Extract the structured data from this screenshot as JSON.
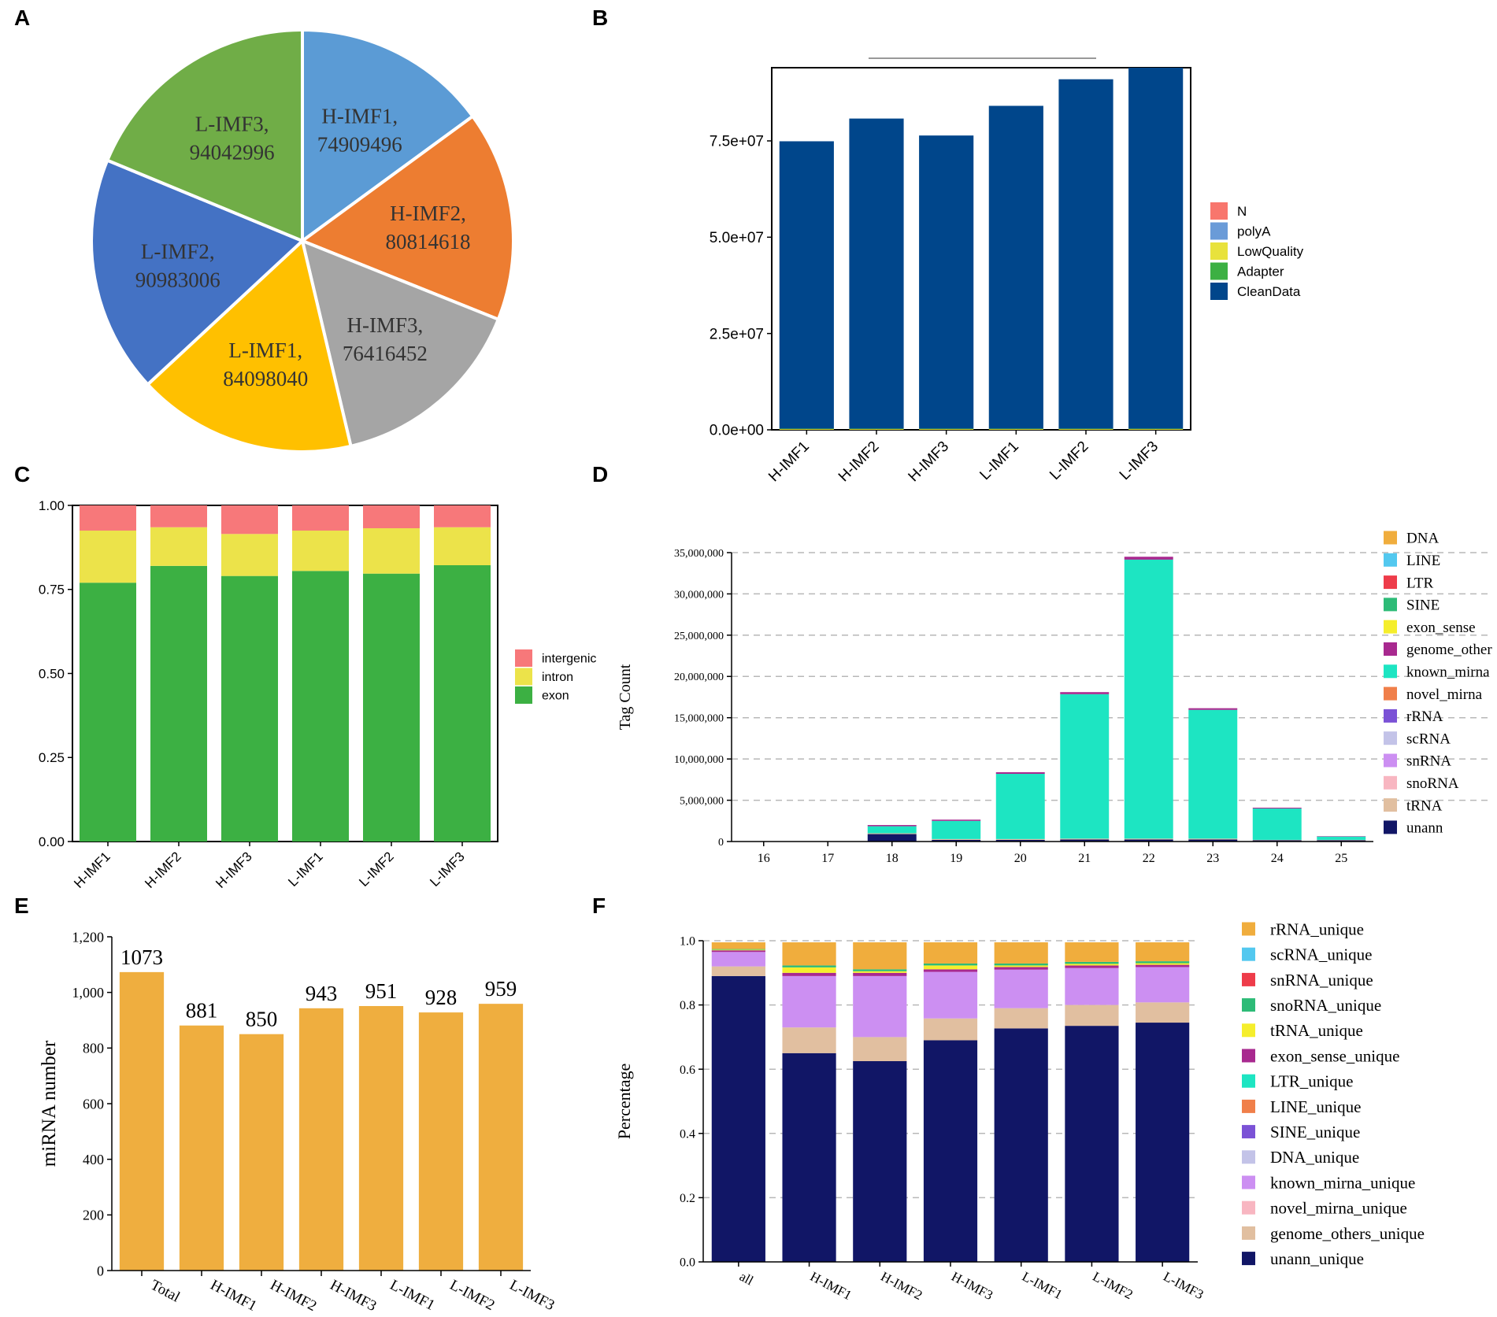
{
  "panel_letters": [
    "A",
    "B",
    "C",
    "D",
    "E",
    "F"
  ],
  "chart_data": [
    {
      "panel": "A",
      "type": "pie",
      "title": "",
      "slices": [
        {
          "name": "H-IMF1",
          "value": 74909496,
          "label_name": "H-IMF1,",
          "label_value": "74909496",
          "color": "#5b9bd5"
        },
        {
          "name": "H-IMF2",
          "value": 80814618,
          "label_name": "H-IMF2,",
          "label_value": "80814618",
          "color": "#ed7d31"
        },
        {
          "name": "H-IMF3",
          "value": 76416452,
          "label_name": "H-IMF3,",
          "label_value": "76416452",
          "color": "#a5a5a5"
        },
        {
          "name": "L-IMF1",
          "value": 84098040,
          "label_name": "L-IMF1,",
          "label_value": "84098040",
          "color": "#ffc000"
        },
        {
          "name": "L-IMF2",
          "value": 90983006,
          "label_name": "L-IMF2,",
          "label_value": "90983006",
          "color": "#4472c4"
        },
        {
          "name": "L-IMF3",
          "value": 94042996,
          "label_name": "L-IMF3,",
          "label_value": "94042996",
          "color": "#70ad47"
        }
      ]
    },
    {
      "panel": "B",
      "type": "bar",
      "stacked": true,
      "categories": [
        "H-IMF1",
        "H-IMF2",
        "H-IMF3",
        "L-IMF1",
        "L-IMF2",
        "L-IMF3"
      ],
      "series": [
        {
          "name": "N",
          "color": "#f8766d",
          "values": [
            0,
            0,
            0,
            0,
            0,
            0
          ]
        },
        {
          "name": "polyA",
          "color": "#6a9bd8",
          "values": [
            0,
            0,
            0,
            0,
            0,
            0
          ]
        },
        {
          "name": "LowQuality",
          "color": "#e8e23c",
          "values": [
            200000,
            200000,
            200000,
            200000,
            200000,
            200000
          ]
        },
        {
          "name": "Adapter",
          "color": "#3cb043",
          "values": [
            100000,
            100000,
            100000,
            100000,
            100000,
            100000
          ]
        },
        {
          "name": "CleanData",
          "color": "#00468b",
          "values": [
            74600000,
            80500000,
            76100000,
            83800000,
            90700000,
            93700000
          ]
        }
      ],
      "legend_order": [
        "N",
        "polyA",
        "LowQuality",
        "Adapter",
        "CleanData"
      ],
      "yticks": [
        "0.0e+00",
        "2.5e+07",
        "5.0e+07",
        "7.5e+07"
      ],
      "ytick_values": [
        0,
        25000000,
        50000000,
        75000000
      ],
      "ylim": [
        0,
        94000000
      ],
      "xlabel": "",
      "ylabel": ""
    },
    {
      "panel": "C",
      "type": "bar",
      "stacked": true,
      "categories": [
        "H-IMF1",
        "H-IMF2",
        "H-IMF3",
        "L-IMF1",
        "L-IMF2",
        "L-IMF3"
      ],
      "series": [
        {
          "name": "exon",
          "color": "#3cb043",
          "values": [
            0.77,
            0.82,
            0.79,
            0.805,
            0.797,
            0.822
          ]
        },
        {
          "name": "intron",
          "color": "#ece34a",
          "values": [
            0.155,
            0.115,
            0.125,
            0.12,
            0.135,
            0.113
          ]
        },
        {
          "name": "intergenic",
          "color": "#f7787a",
          "values": [
            0.075,
            0.065,
            0.085,
            0.075,
            0.068,
            0.065
          ]
        }
      ],
      "legend_order": [
        "intergenic",
        "intron",
        "exon"
      ],
      "yticks": [
        "0.00",
        "0.25",
        "0.50",
        "0.75",
        "1.00"
      ],
      "ytick_values": [
        0,
        0.25,
        0.5,
        0.75,
        1.0
      ],
      "ylim": [
        0,
        1
      ],
      "xlabel": "",
      "ylabel": ""
    },
    {
      "panel": "D",
      "type": "bar",
      "stacked": true,
      "categories": [
        "16",
        "17",
        "18",
        "19",
        "20",
        "21",
        "22",
        "23",
        "24",
        "25"
      ],
      "ylabel": "Tag Count",
      "yticks": [
        "0",
        "5,000,000",
        "10,000,000",
        "15,000,000",
        "20,000,000",
        "25,000,000",
        "30,000,000",
        "35,000,000"
      ],
      "ytick_values": [
        0,
        5000000,
        10000000,
        15000000,
        20000000,
        25000000,
        30000000,
        35000000
      ],
      "ylim": [
        0,
        35000000
      ],
      "legend_order": [
        "DNA",
        "LINE",
        "LTR",
        "SINE",
        "exon_sense",
        "genome_other",
        "known_mirna",
        "novel_mirna",
        "rRNA",
        "scRNA",
        "snRNA",
        "snoRNA",
        "tRNA",
        "unann"
      ],
      "legend_colors": [
        "#f0ad3d",
        "#53c8ef",
        "#ee3c4a",
        "#2dbb77",
        "#f5ee2c",
        "#a8298f",
        "#1de5c2",
        "#f07f4a",
        "#7b52d6",
        "#c3c3e8",
        "#cc8ff2",
        "#f8b6c1",
        "#e1bfa0",
        "#111666"
      ],
      "series": [
        {
          "name": "unann",
          "color": "#111666",
          "values": [
            0,
            0,
            900000,
            200000,
            200000,
            250000,
            250000,
            250000,
            150000,
            150000
          ]
        },
        {
          "name": "tRNA",
          "color": "#e1bfa0",
          "values": [
            0,
            0,
            100000,
            100000,
            100000,
            100000,
            100000,
            100000,
            50000,
            50000
          ]
        },
        {
          "name": "known_mirna",
          "color": "#1de5c2",
          "values": [
            0,
            0,
            850000,
            2200000,
            7900000,
            17500000,
            33800000,
            15600000,
            3800000,
            400000
          ]
        },
        {
          "name": "genome_other",
          "color": "#a8298f",
          "values": [
            0,
            0,
            150000,
            150000,
            200000,
            250000,
            350000,
            200000,
            100000,
            50000
          ]
        }
      ]
    },
    {
      "panel": "E",
      "type": "bar",
      "categories": [
        "Total",
        "H-IMF1",
        "H-IMF2",
        "H-IMF3",
        "L-IMF1",
        "L-IMF2",
        "L-IMF3"
      ],
      "values": [
        1073,
        881,
        850,
        943,
        951,
        928,
        959
      ],
      "data_labels": [
        "1073",
        "881",
        "850",
        "943",
        "951",
        "928",
        "959"
      ],
      "color": "#efae3f",
      "ylabel": "miRNA number",
      "yticks": [
        "0",
        "200",
        "400",
        "600",
        "800",
        "1,000",
        "1,200"
      ],
      "ytick_values": [
        0,
        200,
        400,
        600,
        800,
        1000,
        1200
      ],
      "ylim": [
        0,
        1200
      ]
    },
    {
      "panel": "F",
      "type": "bar",
      "stacked": true,
      "categories": [
        "all",
        "H-IMF1",
        "H-IMF2",
        "H-IMF3",
        "L-IMF1",
        "L-IMF2",
        "L-IMF3"
      ],
      "ylabel": "Percentage",
      "yticks": [
        "0.0",
        "0.2",
        "0.4",
        "0.6",
        "0.8",
        "1.0"
      ],
      "ytick_values": [
        0,
        0.2,
        0.4,
        0.6,
        0.8,
        1.0
      ],
      "ylim": [
        0,
        1.0
      ],
      "legend_order": [
        "rRNA_unique",
        "scRNA_unique",
        "snRNA_unique",
        "snoRNA_unique",
        "tRNA_unique",
        "exon_sense_unique",
        "LTR_unique",
        "LINE_unique",
        "SINE_unique",
        "DNA_unique",
        "known_mirna_unique",
        "novel_mirna_unique",
        "genome_others_unique",
        "unann_unique"
      ],
      "legend_colors": [
        "#f0ad3d",
        "#53c8ef",
        "#ee3c4a",
        "#2dbb77",
        "#f5ee2c",
        "#a8298f",
        "#1de5c2",
        "#f07f4a",
        "#7b52d6",
        "#c3c3e8",
        "#cc8ff2",
        "#f8b6c1",
        "#e1bfa0",
        "#111666"
      ],
      "series": [
        {
          "name": "unann_unique",
          "color": "#111666",
          "values": [
            0.89,
            0.65,
            0.625,
            0.69,
            0.727,
            0.735,
            0.745
          ]
        },
        {
          "name": "genome_others_unique",
          "color": "#e1bfa0",
          "values": [
            0.03,
            0.08,
            0.075,
            0.068,
            0.063,
            0.065,
            0.063
          ]
        },
        {
          "name": "known_mirna_unique",
          "color": "#cc8ff2",
          "values": [
            0.045,
            0.16,
            0.19,
            0.145,
            0.12,
            0.115,
            0.11
          ]
        },
        {
          "name": "exon_sense_unique",
          "color": "#a8298f",
          "values": [
            0.005,
            0.01,
            0.01,
            0.008,
            0.008,
            0.008,
            0.007
          ]
        },
        {
          "name": "tRNA_unique",
          "color": "#f5ee2c",
          "values": [
            0.002,
            0.017,
            0.005,
            0.012,
            0.005,
            0.005,
            0.005
          ]
        },
        {
          "name": "snoRNA_unique",
          "color": "#2dbb77",
          "values": [
            0.002,
            0.006,
            0.006,
            0.006,
            0.006,
            0.006,
            0.006
          ]
        },
        {
          "name": "rRNA_unique",
          "color": "#f0ad3d",
          "values": [
            0.021,
            0.072,
            0.084,
            0.066,
            0.066,
            0.061,
            0.059
          ]
        }
      ]
    }
  ]
}
